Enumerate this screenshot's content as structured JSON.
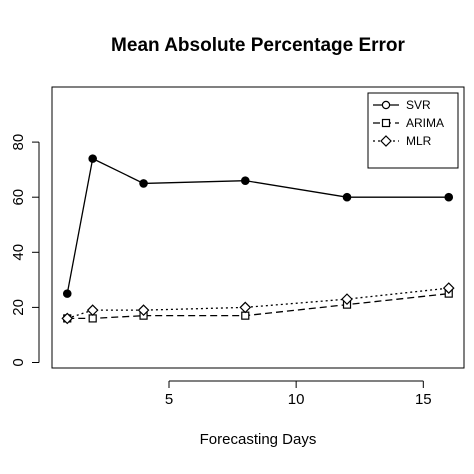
{
  "chart_data": {
    "type": "line",
    "title": "Mean Absolute Percentage Error",
    "xlabel": "Forecasting Days",
    "ylabel": "",
    "xlim": [
      0.4,
      16.6
    ],
    "ylim": [
      -2,
      100
    ],
    "xticks": [
      5,
      10,
      15
    ],
    "yticks": [
      0,
      20,
      40,
      60,
      80
    ],
    "grid": false,
    "legend_position": "top-right",
    "x": [
      1,
      2,
      4,
      8,
      12,
      16
    ],
    "series": [
      {
        "name": "SVR",
        "values": [
          25,
          74,
          65,
          66,
          60,
          60
        ],
        "line_style": "solid",
        "marker": "filled-circle",
        "legend_marker": "open-circle"
      },
      {
        "name": "ARIMA",
        "values": [
          16,
          16,
          17,
          17,
          21,
          25
        ],
        "line_style": "dashed",
        "marker": "open-square"
      },
      {
        "name": "MLR",
        "values": [
          16,
          19,
          19,
          20,
          23,
          27
        ],
        "line_style": "dotted",
        "marker": "open-diamond"
      }
    ]
  }
}
